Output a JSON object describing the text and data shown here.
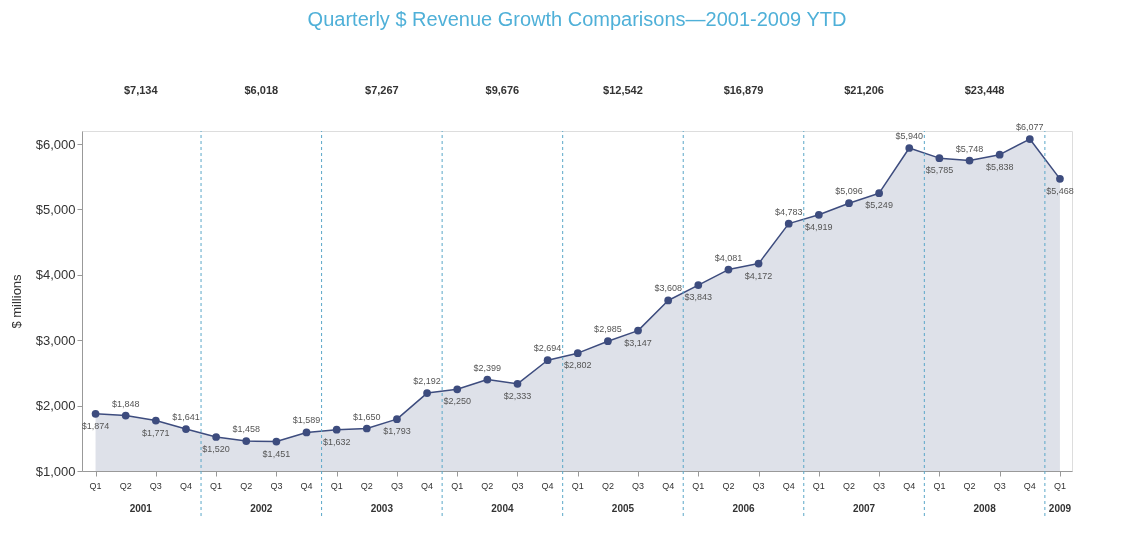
{
  "chart_data": {
    "type": "area",
    "title": "Quarterly $ Revenue Growth Comparisons—2001-2009 YTD",
    "ylabel": "$ millions",
    "categories": [
      "Q1",
      "Q2",
      "Q3",
      "Q4",
      "Q1",
      "Q2",
      "Q3",
      "Q4",
      "Q1",
      "Q2",
      "Q3",
      "Q4",
      "Q1",
      "Q2",
      "Q3",
      "Q4",
      "Q1",
      "Q2",
      "Q3",
      "Q4",
      "Q1",
      "Q2",
      "Q3",
      "Q4",
      "Q1",
      "Q2",
      "Q3",
      "Q4",
      "Q1",
      "Q2",
      "Q3",
      "Q4",
      "Q1"
    ],
    "series": [
      {
        "color": "#3d4c7e",
        "values": [
          1874,
          1848,
          1771,
          1641,
          1520,
          1458,
          1451,
          1589,
          1632,
          1650,
          1793,
          2192,
          2250,
          2399,
          2333,
          2694,
          2802,
          2985,
          3147,
          3608,
          3843,
          4081,
          4172,
          4783,
          4919,
          5096,
          5249,
          5940,
          5785,
          5748,
          5838,
          6077,
          5468
        ]
      }
    ],
    "value_labels": [
      "$1,874",
      "$1,848",
      "$1,771",
      "$1,641",
      "$1,520",
      "$1,458",
      "$1,451",
      "$1,589",
      "$1,632",
      "$1,650",
      "$1,793",
      "$2,192",
      "$2,250",
      "$2,399",
      "$2,333",
      "$2,694",
      "$2,802",
      "$2,985",
      "$3,147",
      "$3,608",
      "$3,843",
      "$4,081",
      "$4,172",
      "$4,783",
      "$4,919",
      "$5,096",
      "$5,249",
      "$5,940",
      "$5,785",
      "$5,748",
      "$5,838",
      "$6,077",
      "$5,468"
    ],
    "ylim": [
      1000,
      6200
    ],
    "yticks": [
      {
        "value": 1000,
        "label": "$1,000"
      },
      {
        "value": 2000,
        "label": "$2,000"
      },
      {
        "value": 3000,
        "label": "$3,000"
      },
      {
        "value": 4000,
        "label": "$4,000"
      },
      {
        "value": 5000,
        "label": "$5,000"
      },
      {
        "value": 6000,
        "label": "$6,000"
      }
    ],
    "annotations": [
      "2001",
      "2002",
      "2003",
      "2004",
      "2005",
      "2006",
      "2007",
      "2008",
      "2009",
      "$7,134",
      "$6,018",
      "$7,267",
      "$9,676",
      "$12,542",
      "$16,879",
      "$21,206",
      "$23,448"
    ],
    "marker": "circle",
    "grid": false
  }
}
